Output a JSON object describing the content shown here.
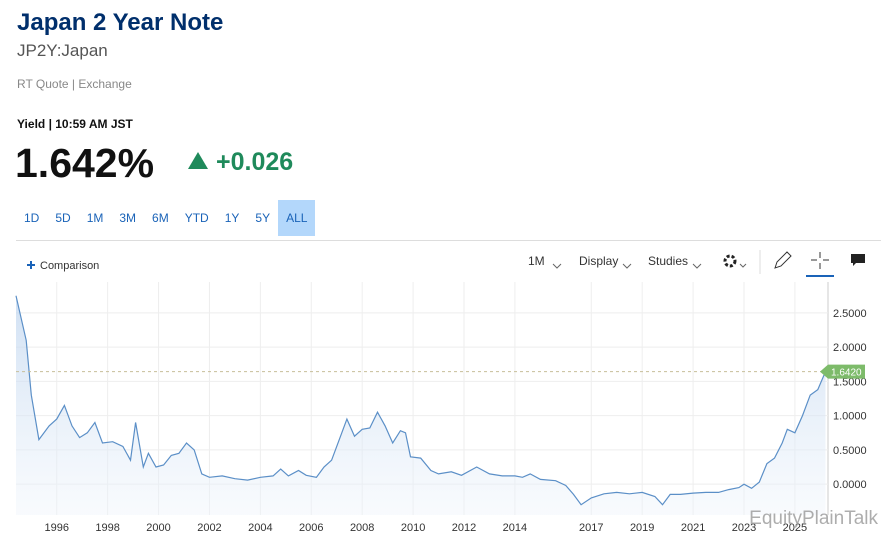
{
  "header": {
    "title": "Japan 2 Year Note",
    "symbol": "JP2Y:Japan",
    "source": "RT Quote | Exchange",
    "time": "Yield | 10:59 AM JST",
    "price": "1.642%",
    "change": "+0.026"
  },
  "ranges": [
    "1D",
    "5D",
    "1M",
    "3M",
    "6M",
    "YTD",
    "1Y",
    "5Y",
    "ALL"
  ],
  "active_range": "ALL",
  "toolbar": {
    "comparison": "Comparison",
    "interval": "1M",
    "display": "Display",
    "studies": "Studies"
  },
  "watermark": "EquityPlainTalk",
  "chart_data": {
    "type": "area",
    "color": "#5b8fc7",
    "grid": true,
    "x": [
      1994.4,
      1994.8,
      1995.0,
      1995.3,
      1995.7,
      1996.0,
      1996.3,
      1996.6,
      1996.9,
      1997.2,
      1997.5,
      1997.8,
      1998.2,
      1998.6,
      1998.9,
      1999.1,
      1999.4,
      1999.6,
      1999.9,
      2000.2,
      2000.5,
      2000.8,
      2001.1,
      2001.4,
      2001.7,
      2002.0,
      2002.5,
      2003.0,
      2003.5,
      2004.0,
      2004.5,
      2004.8,
      2005.1,
      2005.5,
      2005.8,
      2006.2,
      2006.5,
      2006.8,
      2007.2,
      2007.4,
      2007.7,
      2008.0,
      2008.3,
      2008.6,
      2008.9,
      2009.2,
      2009.5,
      2009.7,
      2009.9,
      2010.3,
      2010.7,
      2011.0,
      2011.5,
      2011.9,
      2012.5,
      2013.0,
      2013.5,
      2014.0,
      2014.3,
      2014.6,
      2015.0,
      2015.6,
      2016.0,
      2016.3,
      2016.6,
      2017.0,
      2017.5,
      2018.0,
      2018.5,
      2019.0,
      2019.5,
      2019.8,
      2020.1,
      2020.5,
      2021.0,
      2021.5,
      2022.0,
      2022.4,
      2022.8,
      2023.0,
      2023.3,
      2023.6,
      2023.9,
      2024.2,
      2024.5,
      2024.7,
      2025.0,
      2025.3,
      2025.6,
      2025.9,
      2026.2
    ],
    "values": [
      2.75,
      2.1,
      1.3,
      0.65,
      0.85,
      0.95,
      1.15,
      0.85,
      0.68,
      0.75,
      0.9,
      0.6,
      0.62,
      0.55,
      0.35,
      0.9,
      0.25,
      0.45,
      0.25,
      0.28,
      0.42,
      0.45,
      0.6,
      0.5,
      0.15,
      0.1,
      0.12,
      0.08,
      0.06,
      0.1,
      0.12,
      0.22,
      0.12,
      0.2,
      0.13,
      0.1,
      0.25,
      0.35,
      0.75,
      0.95,
      0.7,
      0.8,
      0.82,
      1.05,
      0.85,
      0.6,
      0.78,
      0.75,
      0.4,
      0.38,
      0.2,
      0.15,
      0.18,
      0.13,
      0.25,
      0.15,
      0.12,
      0.12,
      0.1,
      0.15,
      0.07,
      0.05,
      -0.02,
      -0.15,
      -0.3,
      -0.2,
      -0.14,
      -0.12,
      -0.14,
      -0.12,
      -0.18,
      -0.3,
      -0.15,
      -0.15,
      -0.13,
      -0.12,
      -0.12,
      -0.08,
      -0.05,
      0.0,
      -0.06,
      0.03,
      0.3,
      0.38,
      0.6,
      0.8,
      0.75,
      1.0,
      1.3,
      1.38,
      1.642
    ],
    "current": {
      "value": 1.642,
      "label": "1.6420"
    },
    "xlim": [
      1994.4,
      2026.3
    ],
    "xticks": [
      1996,
      1998,
      2000,
      2002,
      2004,
      2006,
      2008,
      2010,
      2012,
      2014,
      2017,
      2019,
      2021,
      2023,
      2025
    ],
    "ylim": [
      -0.45,
      2.95
    ],
    "yticks": [
      {
        "value": 0,
        "label": "0.0000"
      },
      {
        "value": 0.5,
        "label": "0.5000"
      },
      {
        "value": 1,
        "label": "1.0000"
      },
      {
        "value": 1.5,
        "label": "1.5000"
      },
      {
        "value": 2,
        "label": "2.0000"
      },
      {
        "value": 2.5,
        "label": "2.5000"
      }
    ]
  }
}
